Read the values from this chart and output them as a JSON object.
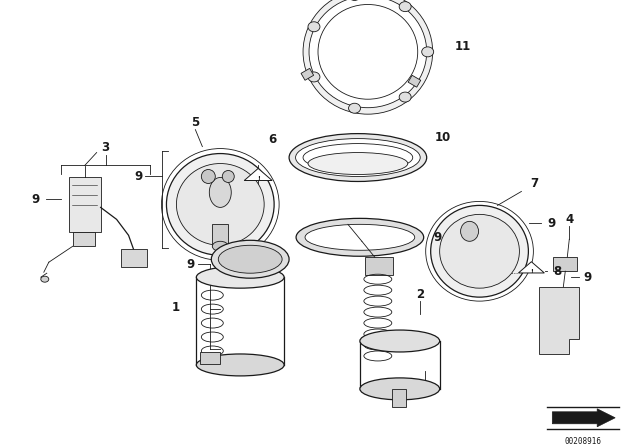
{
  "bg_color": "#ffffff",
  "line_color": "#1a1a1a",
  "fig_width": 6.4,
  "fig_height": 4.48,
  "dpi": 100,
  "part_number": "00208916",
  "annotation_fontsize": 8.5,
  "bold": true
}
